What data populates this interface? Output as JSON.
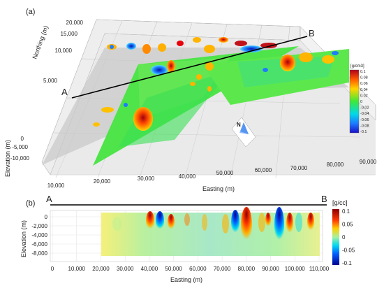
{
  "panel_a": {
    "label": "(a)",
    "profile_start": "A",
    "profile_end": "B",
    "north_label": "N",
    "chart_data": {
      "type": "3d-volume",
      "x_label": "Easting (m)",
      "y_label": "Northing (m)",
      "z_label": "Elevation (m)",
      "x_ticks": [
        "10,000",
        "20,000",
        "30,000",
        "40,000",
        "50,000",
        "60,000",
        "70,000",
        "80,000",
        "90,000"
      ],
      "y_ticks": [
        "5,000",
        "10,000",
        "15,000",
        "20,000"
      ],
      "z_ticks": [
        "0",
        "-5,000",
        "-10,000"
      ],
      "colorbar": {
        "title": "[g/cm3]",
        "ticks": [
          "0.1",
          "0.08",
          "0.06",
          "0.04",
          "0.02",
          "0",
          "-0.02",
          "-0.04",
          "-0.06",
          "-0.08",
          "-0.1"
        ],
        "range": [
          -0.1,
          0.1
        ]
      }
    }
  },
  "panel_b": {
    "label": "(b)",
    "profile_start": "A",
    "profile_end": "B",
    "chart_data": {
      "type": "heatmap",
      "x_label": "Easting (m)",
      "y_label": "Elevation (m)",
      "x_ticks": [
        "0",
        "10,000",
        "20,000",
        "30,000",
        "40,000",
        "50,000",
        "60,000",
        "70,000",
        "80,000",
        "90,000",
        "100,000",
        "110,000"
      ],
      "y_ticks": [
        "0",
        "-2,000",
        "-4,000",
        "-6,000",
        "-8,000"
      ],
      "xlim": [
        0,
        110000
      ],
      "ylim": [
        -8000,
        0
      ],
      "colorbar": {
        "title": "[g/cc]",
        "ticks": [
          "0.1",
          "0.05",
          "0",
          "-0.05",
          "-0.1"
        ],
        "range": [
          -0.1,
          0.1
        ]
      }
    }
  },
  "colors": {
    "background_green": "#4ee44a",
    "positive": "#c0121a",
    "negative": "#0a2cd6"
  }
}
